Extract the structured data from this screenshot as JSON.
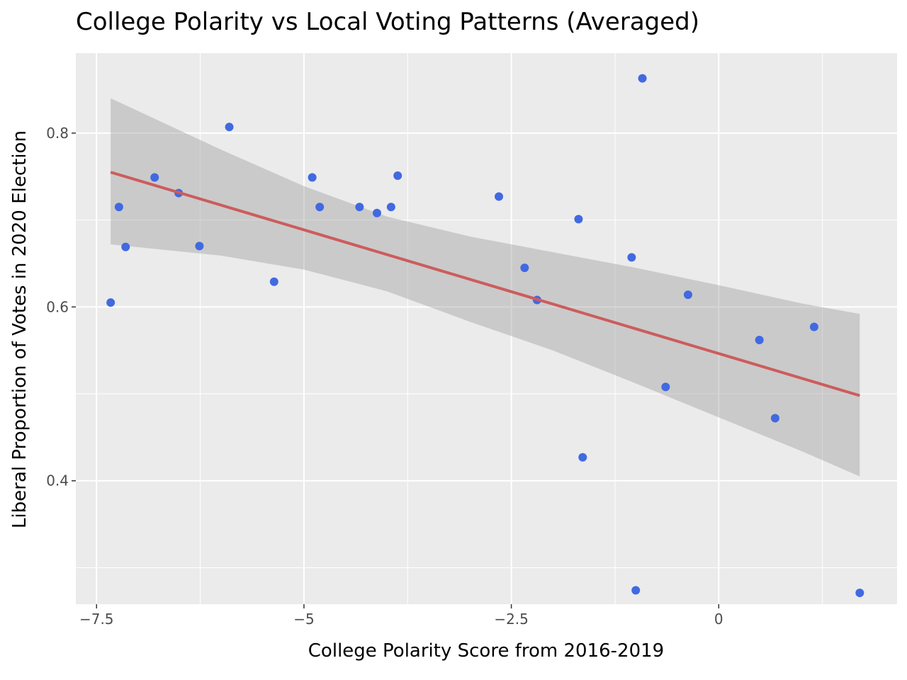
{
  "chart_data": {
    "type": "scatter",
    "title": "College Polarity vs Local Voting Patterns (Averaged)",
    "xlabel": "College Polarity Score from 2016-2019",
    "ylabel": "Liberal Proportion of Votes in 2020 Election",
    "xlim": [
      -7.75,
      2.15
    ],
    "ylim": [
      0.258,
      0.892
    ],
    "x_ticks": [
      -7.5,
      -5,
      -2.5,
      0
    ],
    "x_tick_labels": [
      "−7.5",
      "−5",
      "−2.5",
      "0"
    ],
    "x_minor_ticks": [
      -6.25,
      -3.75,
      -1.25,
      1.25
    ],
    "y_ticks": [
      0.4,
      0.6,
      0.8
    ],
    "y_tick_labels": [
      "0.4",
      "0.6",
      "0.8"
    ],
    "y_minor_ticks": [
      0.3,
      0.5,
      0.7
    ],
    "points": [
      {
        "x": -7.33,
        "y": 0.605
      },
      {
        "x": -7.23,
        "y": 0.715
      },
      {
        "x": -7.15,
        "y": 0.669
      },
      {
        "x": -6.8,
        "y": 0.749
      },
      {
        "x": -6.51,
        "y": 0.731
      },
      {
        "x": -6.26,
        "y": 0.67
      },
      {
        "x": -5.9,
        "y": 0.807
      },
      {
        "x": -5.36,
        "y": 0.629
      },
      {
        "x": -4.9,
        "y": 0.749
      },
      {
        "x": -4.81,
        "y": 0.715
      },
      {
        "x": -4.33,
        "y": 0.715
      },
      {
        "x": -4.12,
        "y": 0.708
      },
      {
        "x": -3.95,
        "y": 0.715
      },
      {
        "x": -3.87,
        "y": 0.751
      },
      {
        "x": -2.65,
        "y": 0.727
      },
      {
        "x": -2.34,
        "y": 0.645
      },
      {
        "x": -2.19,
        "y": 0.608
      },
      {
        "x": -1.69,
        "y": 0.701
      },
      {
        "x": -1.64,
        "y": 0.427
      },
      {
        "x": -1.05,
        "y": 0.657
      },
      {
        "x": -1.0,
        "y": 0.274
      },
      {
        "x": -0.92,
        "y": 0.863
      },
      {
        "x": -0.64,
        "y": 0.508
      },
      {
        "x": -0.37,
        "y": 0.614
      },
      {
        "x": 0.49,
        "y": 0.562
      },
      {
        "x": 0.68,
        "y": 0.472
      },
      {
        "x": 1.15,
        "y": 0.577
      },
      {
        "x": 1.7,
        "y": 0.271
      }
    ],
    "fit_line": {
      "x": [
        -7.33,
        1.7
      ],
      "y": [
        0.755,
        0.498
      ]
    },
    "confidence_band": {
      "x": [
        -7.33,
        -6.0,
        -5.0,
        -4.0,
        -3.0,
        -2.0,
        -1.0,
        0.0,
        1.0,
        1.7
      ],
      "upper": [
        0.84,
        0.781,
        0.739,
        0.704,
        0.681,
        0.663,
        0.645,
        0.625,
        0.604,
        0.592
      ],
      "lower": [
        0.672,
        0.659,
        0.643,
        0.618,
        0.583,
        0.55,
        0.512,
        0.473,
        0.434,
        0.405
      ]
    },
    "colors": {
      "panel": "#ebebeb",
      "grid": "#ffffff",
      "point": "#4169e1",
      "fit_line": "#cd5c5c",
      "band": "#999999"
    }
  }
}
